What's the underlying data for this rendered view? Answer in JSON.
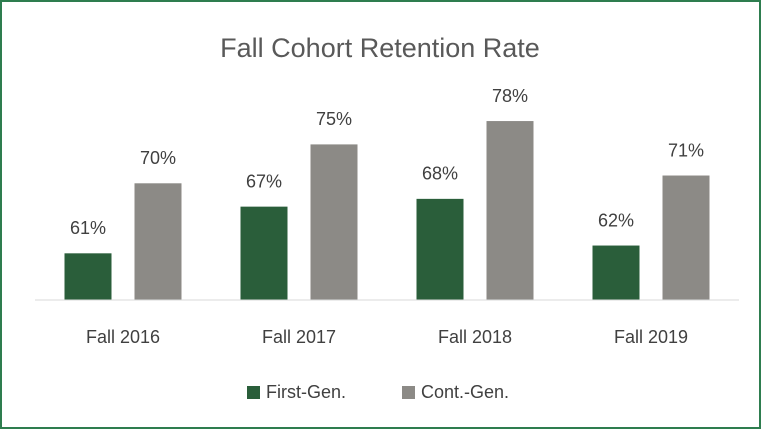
{
  "chart_data": {
    "type": "bar",
    "title": "Fall Cohort Retention Rate",
    "categories": [
      "Fall 2016",
      "Fall 2017",
      "Fall 2018",
      "Fall 2019"
    ],
    "series": [
      {
        "name": "First-Gen.",
        "color": "#2a5e3a",
        "values": [
          61,
          67,
          68,
          62
        ],
        "value_labels": [
          "61%",
          "67%",
          "68%",
          "62%"
        ]
      },
      {
        "name": "Cont.-Gen.",
        "color": "#8c8a86",
        "values": [
          70,
          75,
          78,
          71
        ],
        "value_labels": [
          "70%",
          "75%",
          "78%",
          "71%"
        ]
      }
    ],
    "ylim": [
      55,
      80
    ],
    "legend": "bottom"
  }
}
